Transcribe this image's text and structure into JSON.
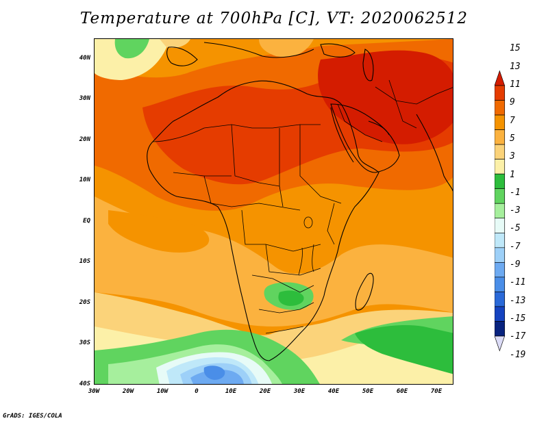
{
  "title": "Temperature at 700hPa [C], VT: 2020062512",
  "credit": "GrADS: IGES/COLA",
  "map": {
    "lat_labels": [
      "40N",
      "30N",
      "20N",
      "10N",
      "EQ",
      "10S",
      "20S",
      "30S",
      "40S"
    ],
    "lat_values": [
      40,
      30,
      20,
      10,
      0,
      -10,
      -20,
      -30,
      -40
    ],
    "lon_labels": [
      "30W",
      "20W",
      "10W",
      "0",
      "10E",
      "20E",
      "30E",
      "40E",
      "50E",
      "60E",
      "70E"
    ],
    "lon_values": [
      -30,
      -20,
      -10,
      0,
      10,
      20,
      30,
      40,
      50,
      60,
      70
    ],
    "extent": {
      "lon": [
        -30,
        75
      ],
      "lat": [
        -40,
        45
      ]
    }
  },
  "colorbar": {
    "labels": [
      "15",
      "13",
      "11",
      "9",
      "7",
      "5",
      "3",
      "1",
      "-1",
      "-3",
      "-5",
      "-7",
      "-9",
      "-11",
      "-13",
      "-15",
      "-17",
      "-19"
    ],
    "levels": [
      15,
      13,
      11,
      9,
      7,
      5,
      3,
      1,
      -1,
      -3,
      -5,
      -7,
      -9,
      -11,
      -13,
      -15,
      -17,
      -19
    ],
    "colors": [
      "#d41c00",
      "#e53c00",
      "#f06a00",
      "#f59300",
      "#fbb23f",
      "#fbd37a",
      "#fcf0a8",
      "#2dbd3c",
      "#60d45f",
      "#a6ef9d",
      "#e7fbf7",
      "#bfe8f9",
      "#9dd0f8",
      "#6daaf1",
      "#4a8ee8",
      "#2a69d8",
      "#1543c0",
      "#08237f",
      "#dcdcf7"
    ]
  }
}
